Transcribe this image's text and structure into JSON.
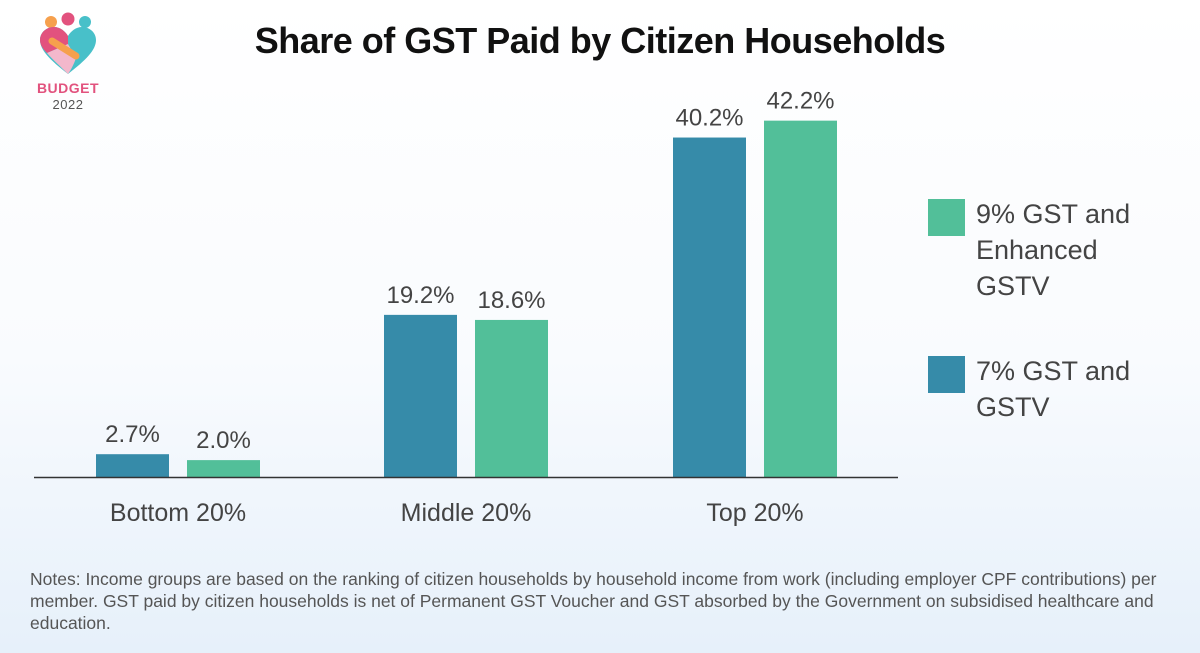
{
  "logo": {
    "word": "BUDGET",
    "year": "2022",
    "colors": [
      "#f6a04d",
      "#e2527e",
      "#48c0c9",
      "#f3b8cc"
    ]
  },
  "chart_data": {
    "type": "bar",
    "title": "Share of GST Paid by Citizen Households",
    "categories": [
      "Bottom 20%",
      "Middle 20%",
      "Top 20%"
    ],
    "series": [
      {
        "name": "7% GST and GSTV",
        "values": [
          2.7,
          19.2,
          40.2
        ],
        "labels": [
          "2.7%",
          "19.2%",
          "40.2%"
        ],
        "color": "#368ba9"
      },
      {
        "name": "9% GST and Enhanced GSTV",
        "values": [
          2.0,
          18.6,
          42.2
        ],
        "labels": [
          "2.0%",
          "18.6%",
          "42.2%"
        ],
        "color": "#52bf99"
      }
    ],
    "ylim": [
      0,
      45
    ],
    "grid": false,
    "y_axis_shown": false,
    "legend_position": "right",
    "legend_order": [
      1,
      0
    ]
  },
  "notes": "Notes: Income groups are based on the ranking of citizen households by household income from work (including employer CPF contributions) per member. GST paid by citizen households is net of Permanent GST Voucher and GST absorbed by the Government on subsidised healthcare and education."
}
